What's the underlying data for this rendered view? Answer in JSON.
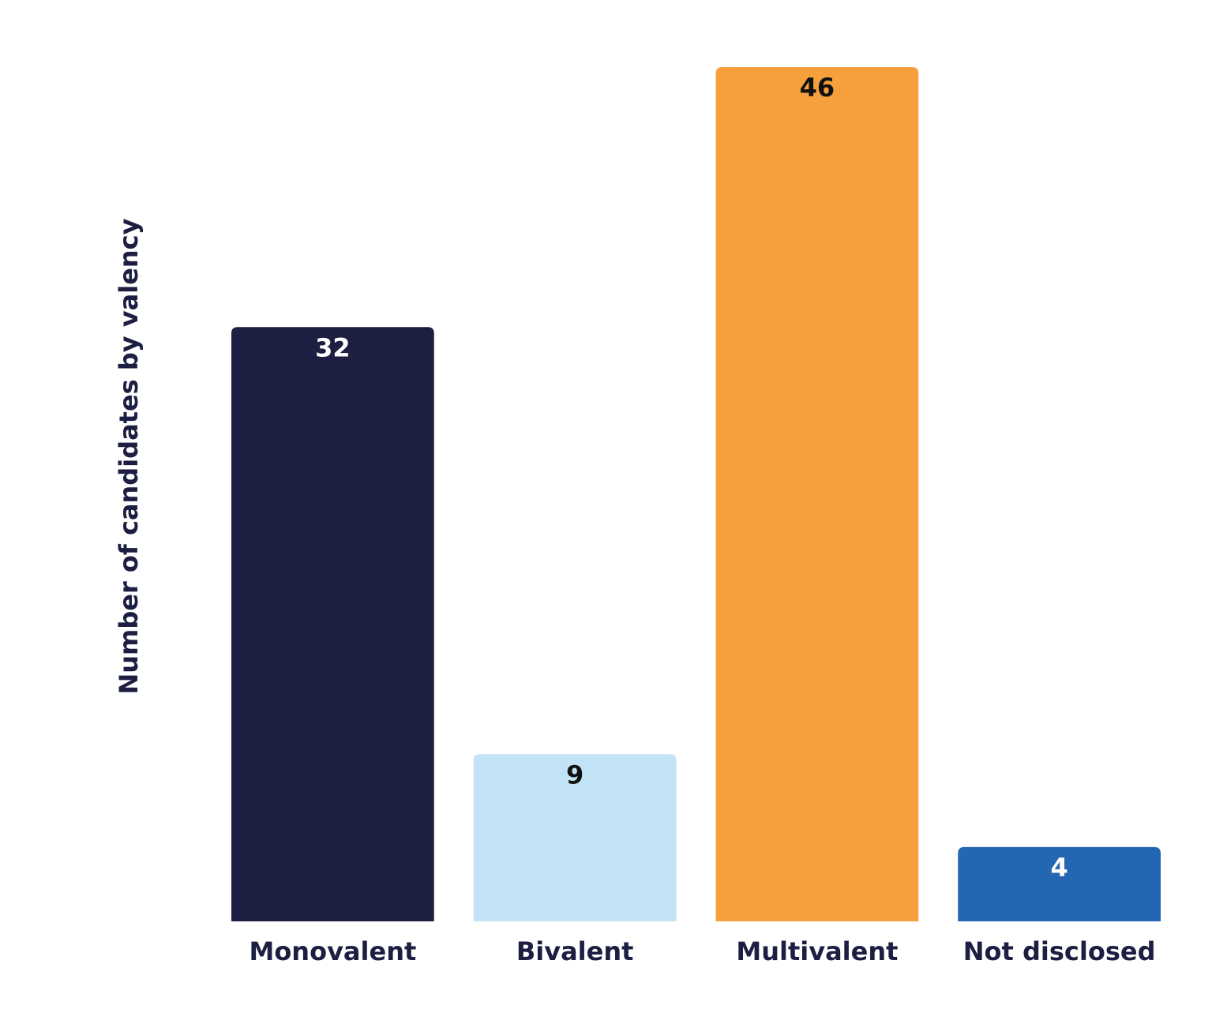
{
  "chart_data": {
    "type": "bar",
    "y_label": "Number of candidates by valency",
    "categories": [
      "Monovalent",
      "Bivalent",
      "Multivalent",
      "Not disclosed"
    ],
    "values": [
      32,
      9,
      46,
      4
    ],
    "colors": [
      "#1c1f41",
      "#c2e3f5",
      "#f6a03d",
      "#2366b2"
    ],
    "ylim": [
      0,
      46
    ],
    "grid": false
  }
}
